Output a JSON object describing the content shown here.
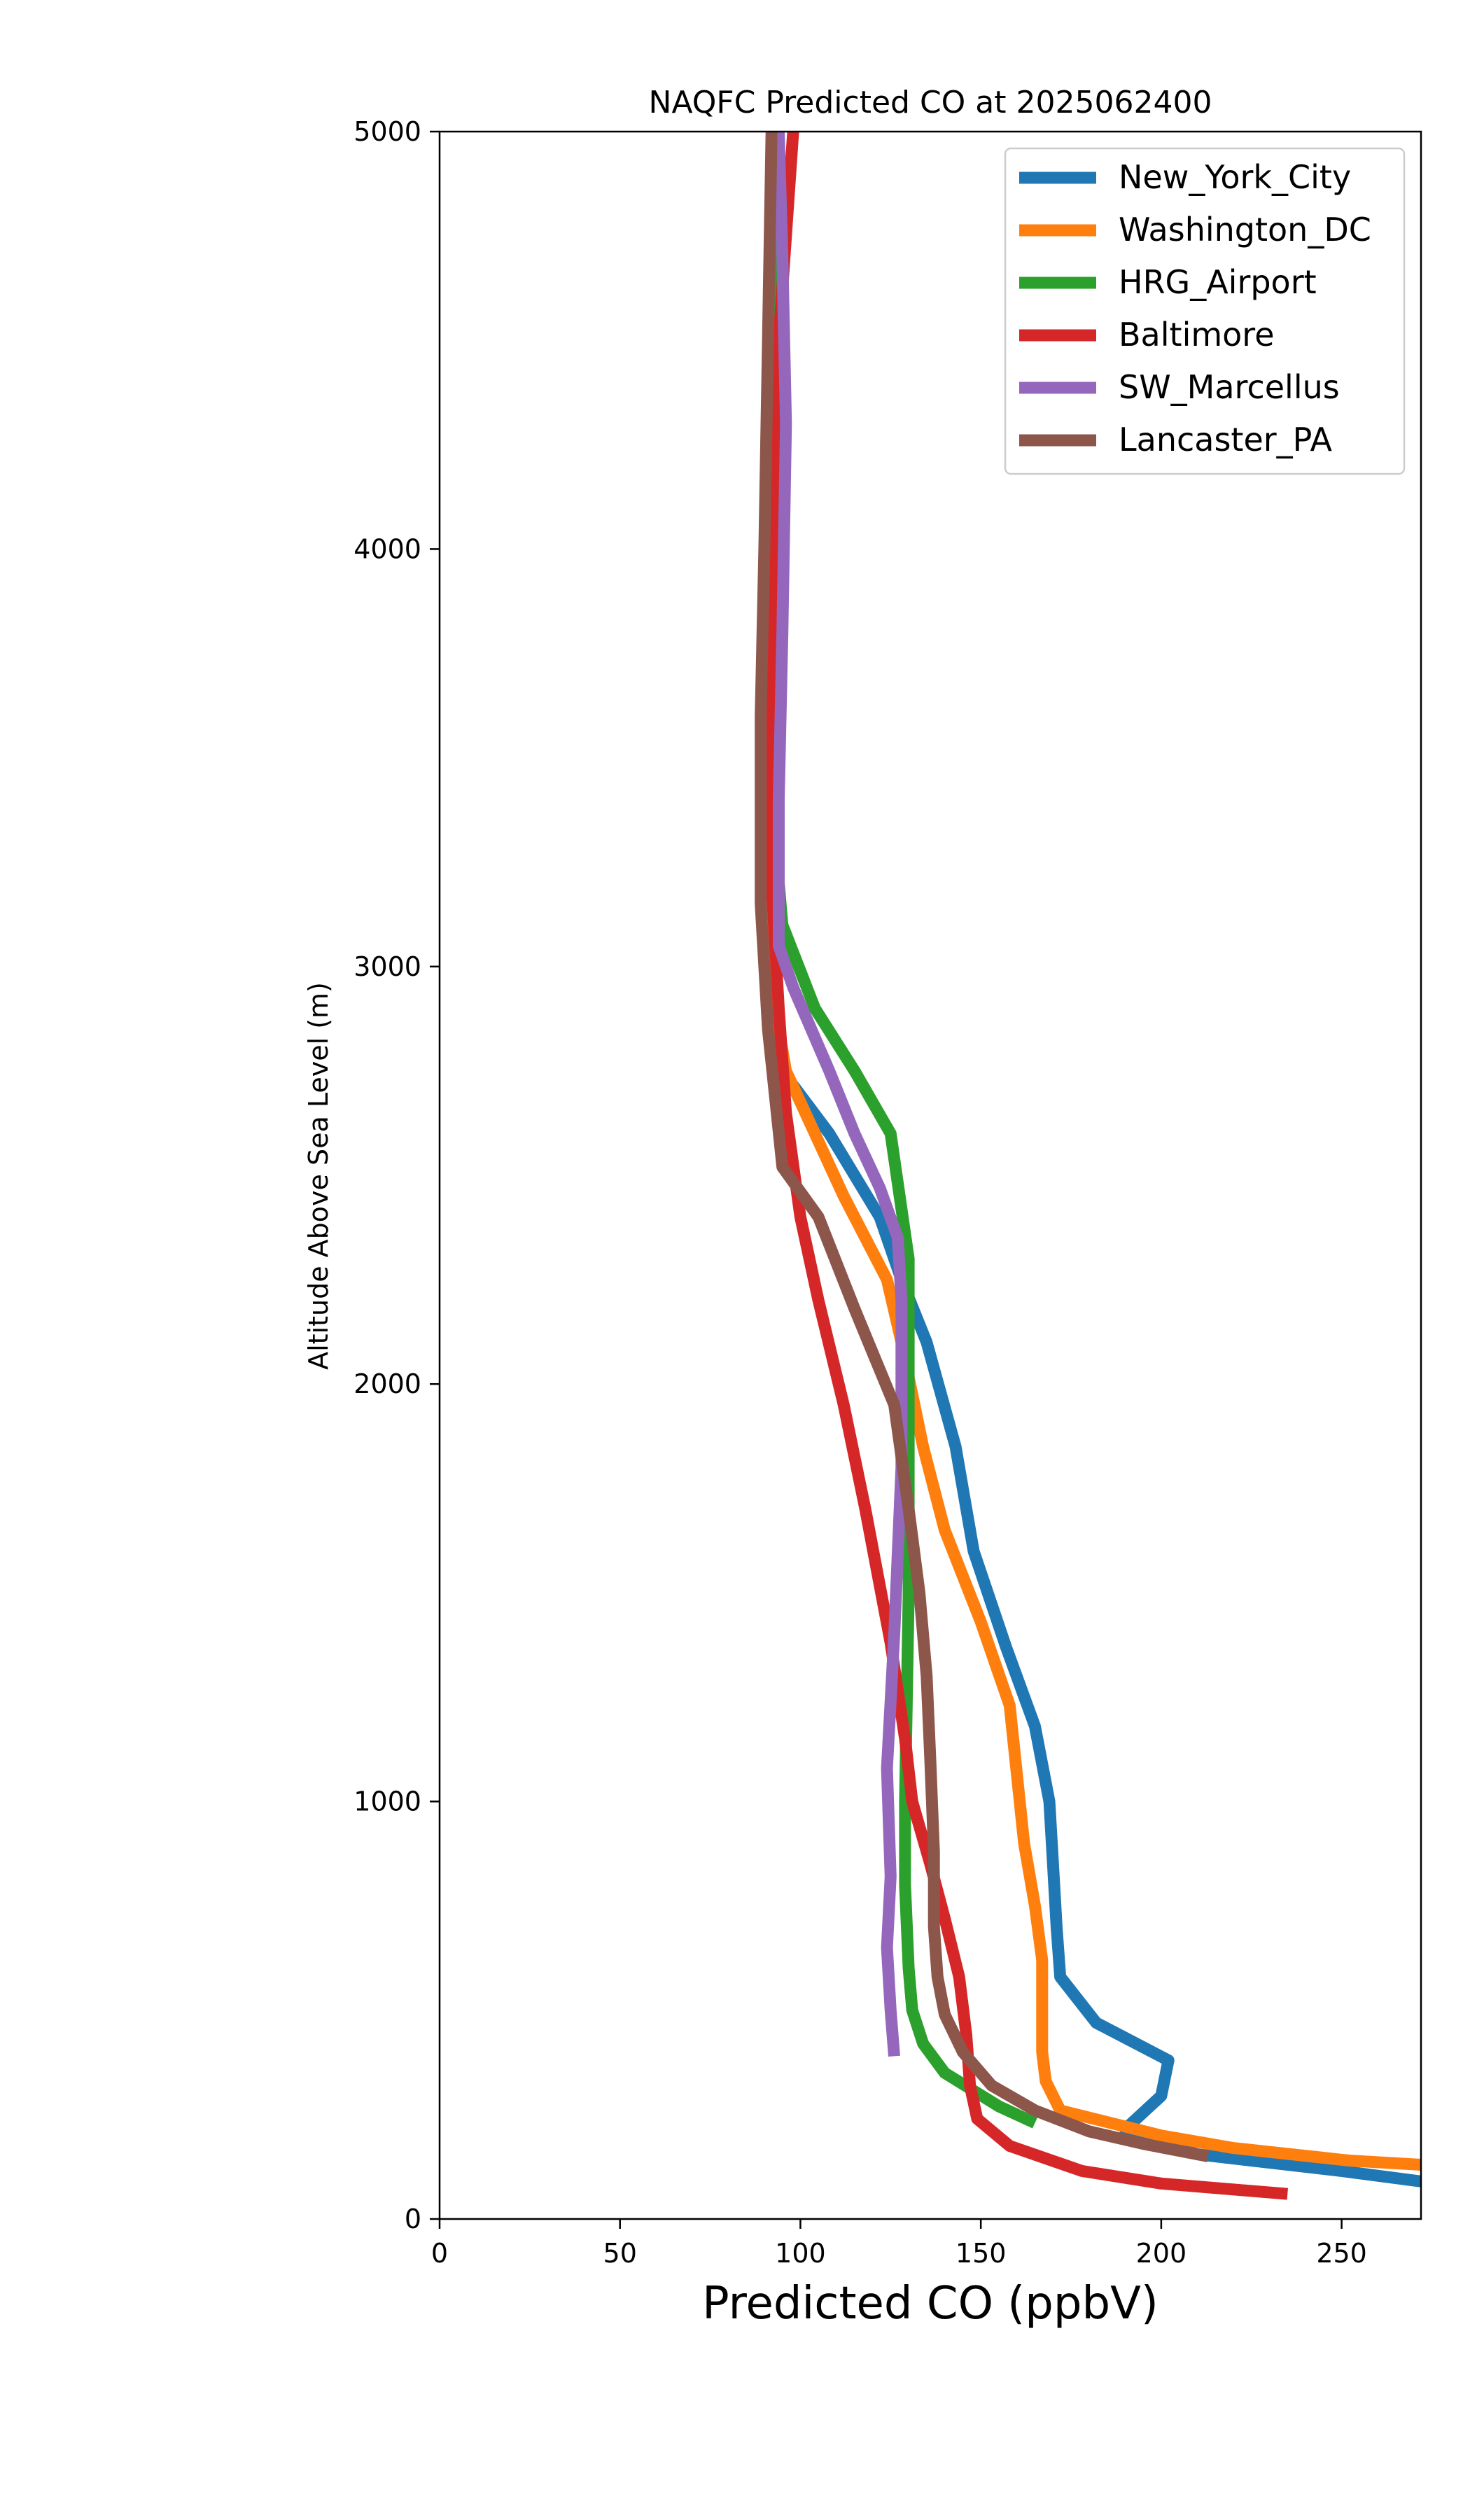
{
  "chart_data": {
    "type": "line",
    "title": "NAQFC Predicted CO at 2025062400",
    "xlabel": "Predicted CO (ppbV)",
    "ylabel": "Altitude Above Sea Level (m)",
    "xlim": [
      0,
      272
    ],
    "ylim": [
      0,
      5000
    ],
    "x_ticks": [
      "0",
      "50",
      "100",
      "150",
      "200",
      "250"
    ],
    "y_ticks": [
      "0",
      "1000",
      "2000",
      "3000",
      "4000",
      "5000"
    ],
    "grid": false,
    "legend_position": "top-right",
    "series": [
      {
        "name": "New_York_City",
        "color": "#1f77b4",
        "points": [
          [
            272,
            90
          ],
          [
            250,
            115
          ],
          [
            210,
            155
          ],
          [
            190,
            215
          ],
          [
            200,
            295
          ],
          [
            202,
            380
          ],
          [
            182,
            470
          ],
          [
            172,
            580
          ],
          [
            171,
            700
          ],
          [
            170,
            850
          ],
          [
            169,
            1000
          ],
          [
            165,
            1180
          ],
          [
            157,
            1370
          ],
          [
            148,
            1600
          ],
          [
            143,
            1850
          ],
          [
            135,
            2100
          ],
          [
            128,
            2250
          ],
          [
            122,
            2400
          ],
          [
            108,
            2600
          ],
          [
            95,
            2750
          ],
          [
            93,
            2900
          ],
          [
            92,
            3200
          ],
          [
            92,
            3600
          ],
          [
            93,
            4000
          ],
          [
            93,
            4500
          ],
          [
            93,
            5000
          ]
        ]
      },
      {
        "name": "Washington_DC",
        "color": "#ff7f0e",
        "points": [
          [
            272,
            130
          ],
          [
            252,
            140
          ],
          [
            220,
            170
          ],
          [
            200,
            200
          ],
          [
            172,
            260
          ],
          [
            168,
            330
          ],
          [
            167,
            400
          ],
          [
            167,
            500
          ],
          [
            167,
            620
          ],
          [
            165,
            750
          ],
          [
            162,
            900
          ],
          [
            158,
            1230
          ],
          [
            150,
            1430
          ],
          [
            140,
            1650
          ],
          [
            134,
            1850
          ],
          [
            128,
            2100
          ],
          [
            124,
            2250
          ],
          [
            112,
            2450
          ],
          [
            104,
            2600
          ],
          [
            96,
            2750
          ],
          [
            93,
            2900
          ],
          [
            92,
            3200
          ],
          [
            92,
            3600
          ],
          [
            93,
            4000
          ],
          [
            93,
            4500
          ],
          [
            93,
            5000
          ]
        ]
      },
      {
        "name": "HRG_Airport",
        "color": "#2ca02c",
        "points": [
          [
            165,
            230
          ],
          [
            155,
            270
          ],
          [
            140,
            350
          ],
          [
            134,
            420
          ],
          [
            131,
            500
          ],
          [
            130,
            600
          ],
          [
            129,
            800
          ],
          [
            129,
            1000
          ],
          [
            130,
            1500
          ],
          [
            130,
            2000
          ],
          [
            130,
            2300
          ],
          [
            125,
            2600
          ],
          [
            115,
            2750
          ],
          [
            104,
            2900
          ],
          [
            95,
            3100
          ],
          [
            93,
            3300
          ],
          [
            92,
            3600
          ],
          [
            93,
            4000
          ],
          [
            93,
            4500
          ],
          [
            93,
            5000
          ]
        ]
      },
      {
        "name": "Baltimore",
        "color": "#d62728",
        "points": [
          [
            235,
            60
          ],
          [
            200,
            85
          ],
          [
            178,
            115
          ],
          [
            158,
            175
          ],
          [
            149,
            240
          ],
          [
            147,
            320
          ],
          [
            146,
            440
          ],
          [
            144,
            580
          ],
          [
            140,
            720
          ],
          [
            136,
            850
          ],
          [
            131,
            1000
          ],
          [
            129,
            1150
          ],
          [
            125,
            1380
          ],
          [
            118,
            1700
          ],
          [
            112,
            1950
          ],
          [
            105,
            2200
          ],
          [
            100,
            2400
          ],
          [
            96,
            2650
          ],
          [
            94,
            2900
          ],
          [
            92,
            3200
          ],
          [
            92,
            3600
          ],
          [
            93,
            4000
          ],
          [
            94,
            4500
          ],
          [
            98,
            5000
          ]
        ]
      },
      {
        "name": "SW_Marcellus",
        "color": "#9467bd",
        "points": [
          [
            126,
            390
          ],
          [
            125,
            500
          ],
          [
            124,
            650
          ],
          [
            125,
            820
          ],
          [
            124,
            1080
          ],
          [
            126,
            1400
          ],
          [
            128,
            1800
          ],
          [
            128,
            2200
          ],
          [
            127,
            2350
          ],
          [
            122,
            2470
          ],
          [
            115,
            2600
          ],
          [
            108,
            2750
          ],
          [
            98,
            2950
          ],
          [
            94,
            3050
          ],
          [
            94,
            3400
          ],
          [
            95,
            3800
          ],
          [
            96,
            4300
          ],
          [
            95,
            4700
          ],
          [
            94,
            5000
          ]
        ]
      },
      {
        "name": "Lancaster_PA",
        "color": "#8c564b",
        "points": [
          [
            213,
            150
          ],
          [
            195,
            180
          ],
          [
            180,
            210
          ],
          [
            165,
            260
          ],
          [
            153,
            320
          ],
          [
            145,
            400
          ],
          [
            140,
            490
          ],
          [
            138,
            580
          ],
          [
            137,
            700
          ],
          [
            137,
            880
          ],
          [
            136,
            1100
          ],
          [
            135,
            1300
          ],
          [
            133,
            1500
          ],
          [
            130,
            1700
          ],
          [
            126,
            1950
          ],
          [
            115,
            2180
          ],
          [
            105,
            2400
          ],
          [
            95,
            2520
          ],
          [
            91,
            2850
          ],
          [
            89,
            3150
          ],
          [
            89,
            3600
          ],
          [
            90,
            4000
          ],
          [
            91,
            4500
          ],
          [
            92,
            5000
          ]
        ]
      }
    ]
  }
}
